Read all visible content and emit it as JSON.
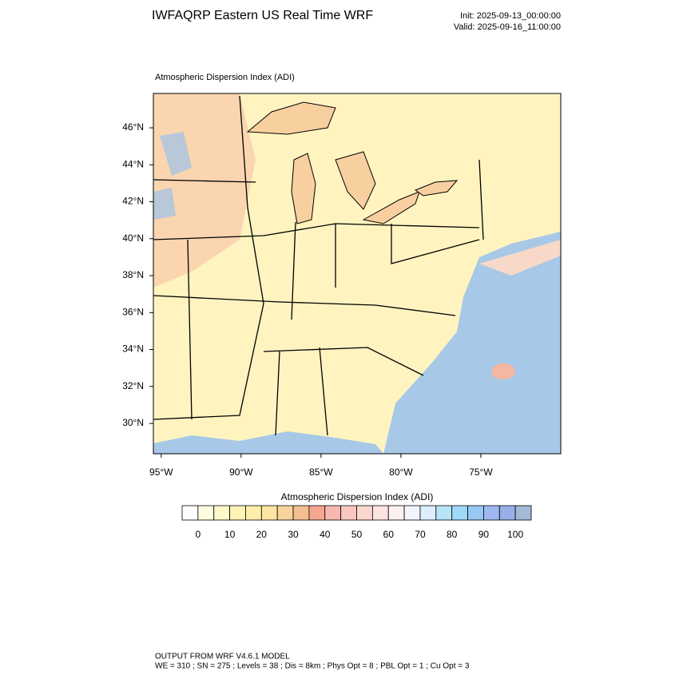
{
  "header": {
    "title": "IWFAQRP Eastern US Real Time WRF",
    "init": "Init: 2025-09-13_00:00:00",
    "valid": "Valid: 2025-09-16_11:00:00"
  },
  "map": {
    "label": "Atmospheric Dispersion Index   (ADI)",
    "xlim": [
      -95.49,
      -70.0
    ],
    "ylim": [
      28.36,
      47.86
    ],
    "xticks": [
      {
        "value": -95,
        "label": "95°W"
      },
      {
        "value": -90,
        "label": "90°W"
      },
      {
        "value": -85,
        "label": "85°W"
      },
      {
        "value": -80,
        "label": "80°W"
      },
      {
        "value": -75,
        "label": "75°W"
      }
    ],
    "yticks": [
      {
        "value": 30,
        "label": "30°N"
      },
      {
        "value": 32,
        "label": "32°N"
      },
      {
        "value": 34,
        "label": "34°N"
      },
      {
        "value": 36,
        "label": "36°N"
      },
      {
        "value": 38,
        "label": "38°N"
      },
      {
        "value": 40,
        "label": "40°N"
      },
      {
        "value": 42,
        "label": "42°N"
      },
      {
        "value": 44,
        "label": "44°N"
      },
      {
        "value": 46,
        "label": "46°N"
      }
    ]
  },
  "colorbar": {
    "title": "Atmospheric Dispersion Index  (ADI)",
    "colors": [
      "#ffffff",
      "#fffde0",
      "#fff8c8",
      "#fff4b8",
      "#ffeeaa",
      "#fde6a4",
      "#f8d49c",
      "#f4c090",
      "#f4a890",
      "#f6b8b0",
      "#f8c8c0",
      "#fad8d0",
      "#fce4e0",
      "#fdf0f0",
      "#f4f4ff",
      "#dceefc",
      "#b8e4f8",
      "#a0d8f8",
      "#98c8f4",
      "#a0b8f0",
      "#98b0e8",
      "#a4b8d8"
    ],
    "ticks": [
      0,
      10,
      20,
      30,
      40,
      50,
      60,
      70,
      80,
      90,
      100
    ]
  },
  "footer": {
    "line1": "OUTPUT FROM WRF V4.6.1 MODEL",
    "line2": "WE = 310 ; SN = 275 ; Levels = 38 ; Dis = 8km ; Phys Opt = 8 ; PBL Opt = 1 ; Cu Opt = 3"
  }
}
